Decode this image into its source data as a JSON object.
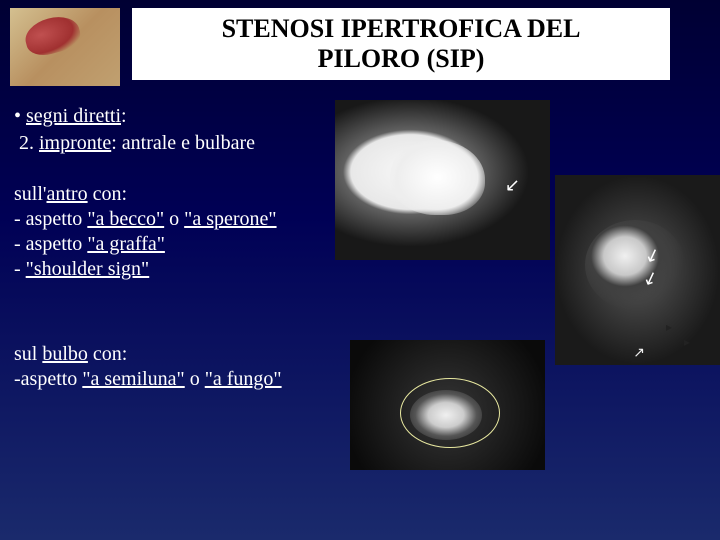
{
  "title": {
    "line1": "STENOSI IPERTROFICA DEL",
    "line2": "PILORO (SIP)"
  },
  "bullet": {
    "label_prefix": "• ",
    "label": "segni diretti",
    "colon": ":"
  },
  "subline": {
    "num": "2. ",
    "word": "impronte",
    "rest": ": antrale e bulbare"
  },
  "antro": {
    "head_pre": "sull'",
    "head_u": "antro",
    "head_post": " con:",
    "item1_pre": "- aspetto ",
    "item1_u1": "\"a becco\"",
    "item1_mid": " o ",
    "item1_u2": "\"a sperone\"",
    "item2_pre": "- aspetto ",
    "item2_u": "\"a graffa\"",
    "item3_pre": "- ",
    "item3_u": "\"shoulder sign\""
  },
  "bulbo": {
    "head_pre": "sul ",
    "head_u": "bulbo",
    "head_post": " con:",
    "item1_pre": "-aspetto ",
    "item1_u1": "\"a semiluna\"",
    "item1_mid": " o ",
    "item1_u2": "\"a fungo\""
  },
  "colors": {
    "text": "#ffffff",
    "title_fg": "#000000",
    "title_bg": "#ffffff",
    "bg_top": "#000033",
    "bg_bottom": "#1a2a6c",
    "oval": "#e8e8a0"
  },
  "images": {
    "corner": "anatomical-stomach-illustration",
    "rx1": "fluoroscopy-antrum-beak",
    "rx2": "fluoroscopy-shoulder-sign",
    "rx3": "fluoroscopy-bulb-mushroom"
  }
}
